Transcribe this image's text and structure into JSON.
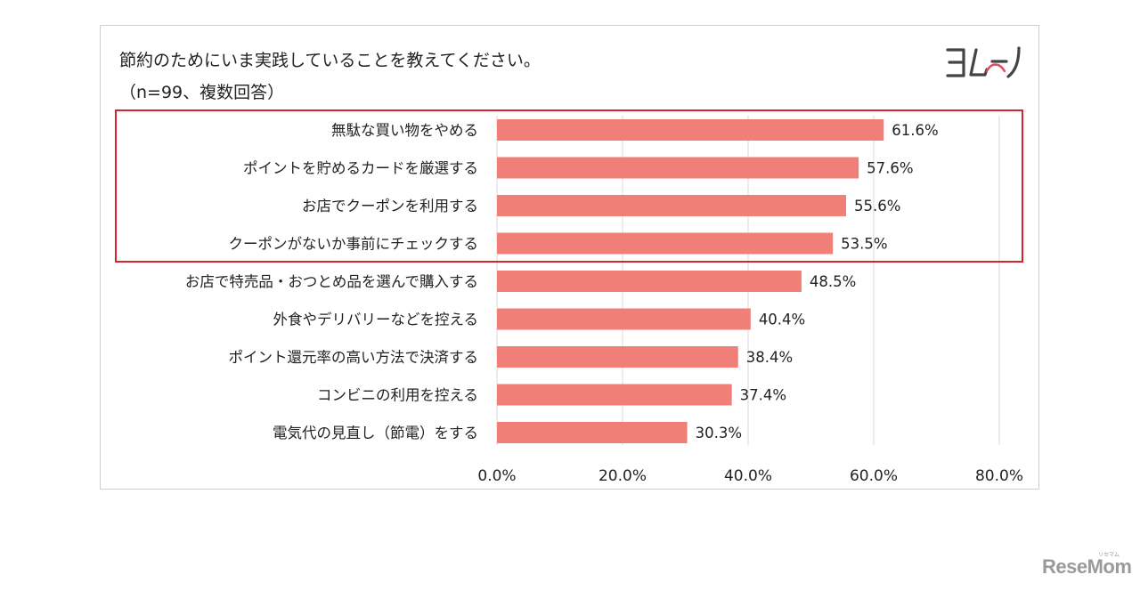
{
  "chart_data": {
    "type": "bar",
    "orientation": "horizontal",
    "title": "節約のためにいま実践していることを教えてください。",
    "subtitle": "（n=99、複数回答）",
    "categories": [
      "無駄な買い物をやめる",
      "ポイントを貯めるカードを厳選する",
      "お店でクーポンを利用する",
      "クーポンがないか事前にチェックする",
      "お店で特売品・おつとめ品を選んで購入する",
      "外食やデリバリーなどを控える",
      "ポイント還元率の高い方法で決済する",
      "コンビニの利用を控える",
      "電気代の見直し（節電）をする"
    ],
    "values": [
      61.6,
      57.6,
      55.6,
      53.5,
      48.5,
      40.4,
      38.4,
      37.4,
      30.3
    ],
    "value_labels": [
      "61.6%",
      "57.6%",
      "55.6%",
      "53.5%",
      "48.5%",
      "40.4%",
      "38.4%",
      "37.4%",
      "30.3%"
    ],
    "xlim": [
      0,
      80
    ],
    "xticks": [
      0,
      20,
      40,
      60,
      80
    ],
    "xtick_labels": [
      "0.0%",
      "20.0%",
      "40.0%",
      "60.0%",
      "80.0%"
    ],
    "xlabel": "",
    "ylabel": "",
    "grid": "vertical",
    "bar_color": "#f07f78",
    "highlighted_categories": [
      0,
      1,
      2,
      3
    ],
    "highlight_color": "#d6262d"
  },
  "logo": {
    "text": "ヨムーノ"
  },
  "brand": {
    "text": "ReseMom",
    "kana": "リセマム"
  }
}
